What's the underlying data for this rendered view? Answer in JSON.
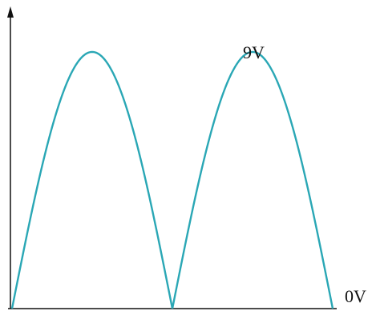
{
  "chart_data": {
    "type": "line",
    "description_free": true,
    "title": "",
    "xlabel": "",
    "ylabel": "",
    "x": [
      0,
      1,
      2
    ],
    "peak_value": 9,
    "baseline_value": 0,
    "ylim": [
      0,
      10.4
    ],
    "xlim": [
      0,
      2.05
    ],
    "grid": false,
    "series": [
      {
        "color": "#2aa7b5",
        "shape": "full-wave-rectified-sine",
        "cycles": 2
      }
    ],
    "annotations": {
      "peak_label": "9V",
      "baseline_label": "0V"
    },
    "colors": {
      "axis": "#111111",
      "wave": "#2aa7b5"
    }
  }
}
